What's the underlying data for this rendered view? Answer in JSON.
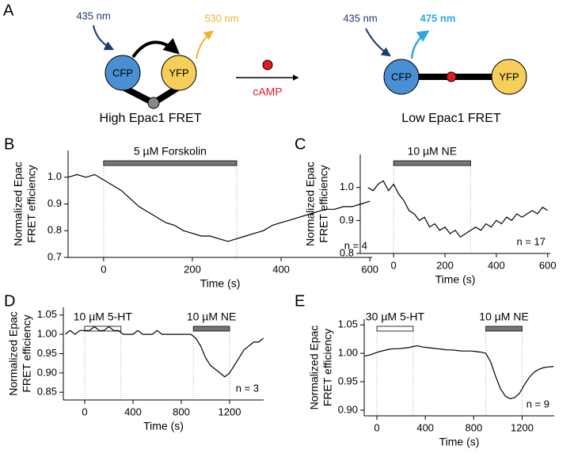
{
  "diagram": {
    "panel": "A",
    "left": {
      "excitation": "435 nm",
      "emission": "530 nm",
      "donor": "CFP",
      "acceptor": "YFP",
      "caption": "High Epac1 FRET"
    },
    "ligand": "cAMP",
    "right": {
      "excitation": "435 nm",
      "emission": "475 nm",
      "donor": "CFP",
      "acceptor": "YFP",
      "caption": "Low Epac1 FRET"
    }
  },
  "chart_data": [
    {
      "type": "line",
      "panel": "B",
      "x_label": "Time (s)",
      "y_label": [
        "Normalized Epac",
        "FRET efficiency"
      ],
      "color": "#000000",
      "annotations": [
        {
          "label": "5 µM Forskolin",
          "start": 0,
          "end": 300,
          "fill": "#777777"
        }
      ],
      "n_label": "n = 4",
      "xlim": [
        -80,
        605
      ],
      "ylim": [
        0.7,
        1.1
      ],
      "xticks": [
        0,
        200,
        400,
        600
      ],
      "yticks": [
        0.7,
        0.8,
        0.9,
        {
          "value": 1,
          "label": "1.0"
        }
      ],
      "x": [
        -80,
        -60,
        -40,
        -20,
        0,
        20,
        40,
        60,
        80,
        100,
        120,
        140,
        160,
        180,
        200,
        220,
        240,
        260,
        280,
        300,
        320,
        340,
        360,
        380,
        400,
        420,
        440,
        460,
        480,
        500,
        520,
        540,
        560,
        580,
        600
      ],
      "values": [
        1.0,
        1.01,
        1.0,
        1.01,
        0.99,
        0.97,
        0.95,
        0.92,
        0.89,
        0.87,
        0.85,
        0.83,
        0.82,
        0.8,
        0.79,
        0.78,
        0.78,
        0.77,
        0.76,
        0.77,
        0.78,
        0.79,
        0.8,
        0.82,
        0.83,
        0.84,
        0.85,
        0.86,
        0.87,
        0.88,
        0.88,
        0.89,
        0.89,
        0.9,
        0.91
      ]
    },
    {
      "type": "line",
      "panel": "C",
      "x_label": "Time (s)",
      "y_label": [
        "Normalized Epac",
        "FRET efficiency"
      ],
      "color": "#000000",
      "annotations": [
        {
          "label": "10 µM NE",
          "start": 0,
          "end": 300,
          "fill": "#777777"
        }
      ],
      "n_label": "n = 17",
      "xlim": [
        -130,
        610
      ],
      "ylim": [
        0.8,
        1.1
      ],
      "xticks": [
        0,
        200,
        400,
        600
      ],
      "yticks": [
        0.8,
        0.9,
        {
          "value": 1,
          "label": "1.0"
        }
      ],
      "x": [
        -100,
        -80,
        -60,
        -40,
        -20,
        0,
        20,
        40,
        60,
        80,
        100,
        120,
        140,
        160,
        180,
        200,
        220,
        240,
        260,
        280,
        300,
        320,
        340,
        360,
        380,
        400,
        420,
        440,
        460,
        480,
        500,
        520,
        540,
        560,
        580,
        600
      ],
      "values": [
        1.0,
        0.99,
        1.01,
        1.02,
        0.99,
        1.01,
        0.98,
        0.96,
        0.93,
        0.92,
        0.9,
        0.91,
        0.88,
        0.89,
        0.87,
        0.88,
        0.86,
        0.87,
        0.85,
        0.86,
        0.87,
        0.88,
        0.87,
        0.89,
        0.88,
        0.9,
        0.89,
        0.91,
        0.9,
        0.92,
        0.91,
        0.92,
        0.93,
        0.92,
        0.94,
        0.93
      ]
    },
    {
      "type": "line",
      "panel": "D",
      "x_label": "Time (s)",
      "y_label": [
        "Normalized Epac",
        "FRET efficiency"
      ],
      "color": "#000000",
      "annotations": [
        {
          "label": "10 µM 5-HT",
          "start": 0,
          "end": 300,
          "fill": "#ffffff"
        },
        {
          "label": "10 µM NE",
          "start": 900,
          "end": 1200,
          "fill": "#777777"
        }
      ],
      "n_label": "n = 3",
      "xlim": [
        -177,
        1482
      ],
      "ylim": [
        0.83,
        1.07
      ],
      "xticks": [
        0,
        400,
        800,
        1200
      ],
      "yticks": [
        0.85,
        {
          "value": 0.9,
          "label": "0.90"
        },
        0.95,
        {
          "value": 1,
          "label": "1.00"
        },
        1.05
      ],
      "x": [
        -160,
        -120,
        -80,
        -40,
        0,
        40,
        80,
        120,
        160,
        200,
        240,
        280,
        320,
        360,
        400,
        440,
        480,
        520,
        560,
        600,
        640,
        680,
        720,
        760,
        800,
        840,
        880,
        920,
        960,
        1000,
        1040,
        1080,
        1120,
        1160,
        1200,
        1240,
        1280,
        1320,
        1360,
        1400,
        1440,
        1480
      ],
      "values": [
        1.0,
        1.01,
        1.0,
        1.01,
        1.01,
        1.01,
        1.02,
        1.01,
        1.01,
        1.02,
        1.01,
        1.01,
        1.0,
        1.0,
        1.0,
        1.01,
        1.0,
        1.0,
        1.0,
        1.01,
        1.0,
        1.0,
        1.0,
        1.0,
        1.0,
        1.0,
        1.0,
        0.99,
        0.97,
        0.94,
        0.92,
        0.91,
        0.9,
        0.89,
        0.9,
        0.92,
        0.94,
        0.96,
        0.97,
        0.98,
        0.98,
        0.99
      ]
    },
    {
      "type": "line",
      "panel": "E",
      "x_label": "Time (s)",
      "y_label": [
        "Normalized Epac",
        "FRET efficiency"
      ],
      "color": "#000000",
      "annotations": [
        {
          "label": "30 µM 5-HT",
          "start": 0,
          "end": 300,
          "fill": "#ffffff"
        },
        {
          "label": "10 µM NE",
          "start": 900,
          "end": 1200,
          "fill": "#777777"
        }
      ],
      "n_label": "n = 9",
      "xlim": [
        -105,
        1465
      ],
      "ylim": [
        0.89,
        1.06
      ],
      "xticks": [
        0,
        400,
        800,
        1200
      ],
      "yticks": [
        {
          "value": 0.9,
          "label": "0.90"
        },
        0.95,
        {
          "value": 1,
          "label": "1.00"
        },
        1.05
      ],
      "x": [
        -100,
        -60,
        -20,
        20,
        60,
        100,
        140,
        180,
        220,
        260,
        300,
        340,
        380,
        420,
        460,
        500,
        540,
        580,
        620,
        660,
        700,
        740,
        780,
        820,
        860,
        900,
        940,
        980,
        1020,
        1060,
        1100,
        1140,
        1180,
        1220,
        1260,
        1300,
        1340,
        1380,
        1420,
        1460
      ],
      "values": [
        0.995,
        0.997,
        1.0,
        1.003,
        1.005,
        1.007,
        1.008,
        1.008,
        1.009,
        1.01,
        1.012,
        1.013,
        1.011,
        1.01,
        1.009,
        1.008,
        1.007,
        1.006,
        1.006,
        1.005,
        1.004,
        1.004,
        1.004,
        1.003,
        1.002,
        1.0,
        0.985,
        0.96,
        0.938,
        0.925,
        0.92,
        0.922,
        0.93,
        0.945,
        0.958,
        0.967,
        0.972,
        0.975,
        0.976,
        0.977
      ]
    }
  ]
}
